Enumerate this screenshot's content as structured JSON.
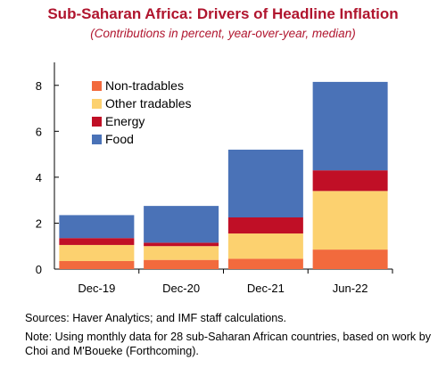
{
  "header": {
    "title": "Sub-Saharan Africa: Drivers of Headline Inflation",
    "subtitle": "(Contributions in percent, year-over-year, median)"
  },
  "chart_data": {
    "type": "bar",
    "stacked": true,
    "categories": [
      "Dec-19",
      "Dec-20",
      "Dec-21",
      "Jun-22"
    ],
    "series": [
      {
        "name": "Non-tradables",
        "color": "#f26a3d",
        "values": [
          0.35,
          0.4,
          0.45,
          0.85
        ]
      },
      {
        "name": "Other tradables",
        "color": "#fcd16f",
        "values": [
          0.7,
          0.6,
          1.1,
          2.55
        ]
      },
      {
        "name": "Energy",
        "color": "#c00f26",
        "values": [
          0.3,
          0.15,
          0.7,
          0.9
        ]
      },
      {
        "name": "Food",
        "color": "#4a72b7",
        "values": [
          1.0,
          1.6,
          2.95,
          3.85
        ]
      }
    ],
    "ylim": [
      0,
      9
    ],
    "yticks": [
      0,
      2,
      4,
      6,
      8
    ],
    "grid": false,
    "legend_position": "top-left"
  },
  "footer": {
    "sources": "Sources: Haver Analytics; and IMF staff calculations.",
    "note": "Note: Using monthly data for 28 sub-Saharan African countries, based on work by Choi and M'Boueke (Forthcoming)."
  }
}
